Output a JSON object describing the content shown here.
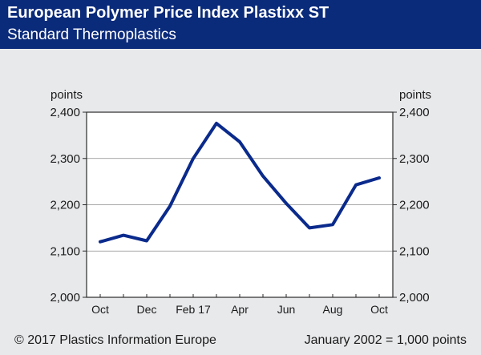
{
  "header": {
    "title": "European Polymer Price Index Plastixx ST",
    "subtitle": "Standard Thermoplastics"
  },
  "footer": {
    "copyright": "© 2017 Plastics Information Europe",
    "note": "January 2002 = 1,000 points"
  },
  "colors": {
    "header_bg": "#0a2a7a",
    "line": "#0a2a8c",
    "plot_bg": "#ffffff",
    "page_bg": "#e8e9eb"
  },
  "chart_data": {
    "type": "line",
    "ylabel_left": "points",
    "ylabel_right": "points",
    "ylim": [
      2000,
      2400
    ],
    "yticks": [
      "2,000",
      "2,100",
      "2,200",
      "2,300",
      "2,400"
    ],
    "ytick_values": [
      2000,
      2100,
      2200,
      2300,
      2400
    ],
    "xticks": [
      {
        "label": "Oct",
        "index": 0
      },
      {
        "label": "Dec",
        "index": 2
      },
      {
        "label": "Feb 17",
        "index": 4
      },
      {
        "label": "Apr",
        "index": 6
      },
      {
        "label": "Jun",
        "index": 8
      },
      {
        "label": "Aug",
        "index": 10
      },
      {
        "label": "Oct",
        "index": 12
      }
    ],
    "grid": true,
    "series": [
      {
        "x": [
          "Oct",
          "Nov",
          "Dec",
          "Jan",
          "Feb 17",
          "Mar",
          "Apr",
          "May",
          "Jun",
          "Jul",
          "Aug",
          "Sep",
          "Oct"
        ],
        "values": [
          2120,
          2134,
          2122,
          2197,
          2300,
          2376,
          2336,
          2262,
          2203,
          2150,
          2157,
          2243,
          2258
        ]
      }
    ]
  }
}
